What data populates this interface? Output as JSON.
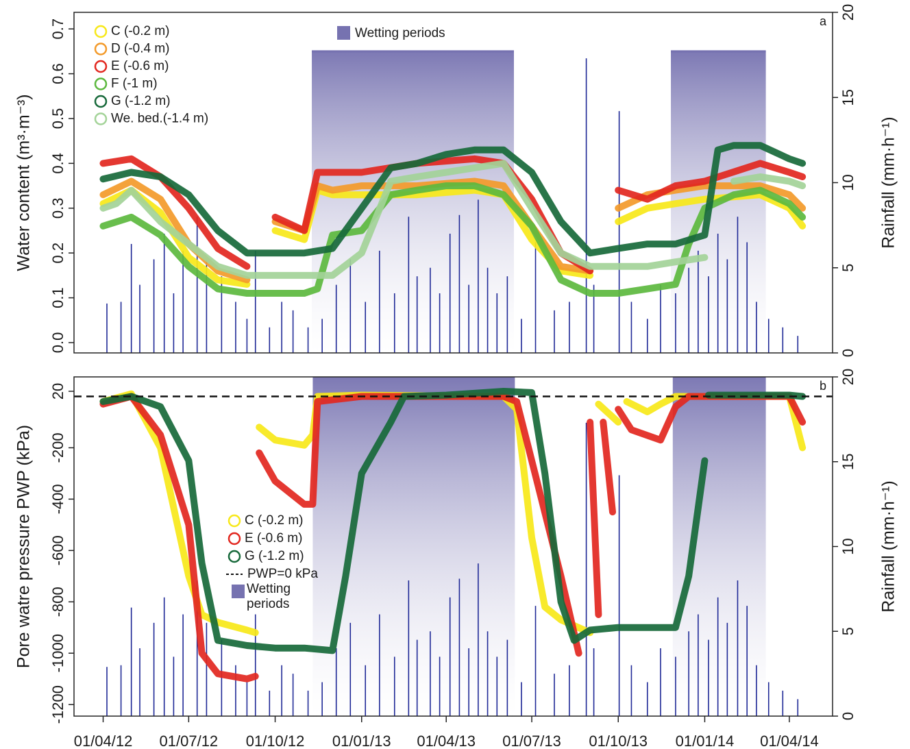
{
  "chart_data": [
    {
      "type": "line",
      "panel_label": "a",
      "y_label": "Water content (m³·m⁻³)",
      "y2_label": "Rainfall (mm·h⁻¹)",
      "xlim": [
        "01/03/12",
        "17/05/14"
      ],
      "ylim": [
        -0.023,
        0.737
      ],
      "yticks": [
        {
          "value": 0,
          "label": "0.0"
        },
        0.1,
        0.2,
        0.3,
        0.4,
        0.5,
        0.6,
        0.7
      ],
      "y2lim": [
        0,
        20
      ],
      "y2ticks": [
        0,
        5,
        10,
        15,
        20
      ],
      "wetting_label": "Wetting periods",
      "wetting_color": "#7672b0",
      "wetting_top": 0.65,
      "wetting_periods": [
        {
          "start": "09/11/12",
          "end": "12/06/13"
        },
        {
          "start": "26/11/13",
          "end": "07/03/14"
        }
      ],
      "series": [
        {
          "name": "C (-0.2 m)",
          "color": "#f7e819",
          "x": [
            "01/04/12",
            "01/05/12",
            "01/06/12",
            "01/07/12",
            "01/08/12",
            "01/09/12",
            "15/09/12",
            "01/10/12",
            "01/11/12",
            "15/11/12",
            "01/12/12",
            "01/01/13",
            "01/03/13",
            "01/05/13",
            "01/06/13",
            "01/07/13",
            "01/08/13",
            "01/09/13",
            "15/09/13",
            "01/10/13",
            "01/11/13",
            "01/12/13",
            "01/01/14",
            "01/03/14",
            "01/04/14",
            "15/04/14"
          ],
          "values": [
            0.31,
            0.34,
            0.29,
            0.19,
            0.14,
            0.13,
            null,
            0.25,
            0.23,
            0.34,
            0.33,
            0.33,
            0.33,
            0.34,
            0.33,
            0.23,
            0.16,
            0.15,
            null,
            0.27,
            0.3,
            0.31,
            0.32,
            0.33,
            0.3,
            0.26
          ]
        },
        {
          "name": "D (-0.4 m)",
          "color": "#f39a2a",
          "x": [
            "01/04/12",
            "01/05/12",
            "01/06/12",
            "01/07/12",
            "01/08/12",
            "01/09/12",
            "15/09/12",
            "01/10/12",
            "01/11/12",
            "15/11/12",
            "01/12/12",
            "01/01/13",
            "01/03/13",
            "01/05/13",
            "01/06/13",
            "01/07/13",
            "01/08/13",
            "01/09/13",
            "15/09/13",
            "01/10/13",
            "01/11/13",
            "01/12/13",
            "01/01/14",
            "01/03/14",
            "01/04/14",
            "15/04/14"
          ],
          "values": [
            0.33,
            0.36,
            0.32,
            0.22,
            0.16,
            0.14,
            null,
            0.27,
            0.25,
            0.35,
            0.34,
            0.35,
            0.35,
            0.36,
            0.35,
            0.26,
            0.17,
            0.16,
            null,
            0.3,
            0.33,
            0.34,
            0.35,
            0.35,
            0.33,
            0.3
          ]
        },
        {
          "name": "E (-0.6 m)",
          "color": "#e2271f",
          "x": [
            "01/04/12",
            "01/05/12",
            "01/06/12",
            "01/07/12",
            "01/08/12",
            "01/09/12",
            "15/09/12",
            "01/10/12",
            "01/11/12",
            "15/11/12",
            "01/12/12",
            "01/01/13",
            "01/03/13",
            "01/05/13",
            "01/06/13",
            "01/07/13",
            "01/08/13",
            "01/09/13",
            "15/09/13",
            "01/10/13",
            "01/11/13",
            "01/12/13",
            "01/01/14",
            "01/03/14",
            "01/04/14",
            "15/04/14"
          ],
          "values": [
            0.4,
            0.41,
            0.37,
            0.3,
            0.21,
            0.17,
            null,
            0.28,
            0.25,
            0.38,
            0.38,
            0.38,
            0.4,
            0.41,
            0.4,
            0.32,
            0.2,
            0.16,
            null,
            0.34,
            0.32,
            0.35,
            0.36,
            0.4,
            0.38,
            0.37
          ]
        },
        {
          "name": "F (-1 m)",
          "color": "#5cb83e",
          "x": [
            "01/04/12",
            "01/05/12",
            "01/06/12",
            "01/07/12",
            "01/08/12",
            "01/09/12",
            "01/10/12",
            "01/11/12",
            "15/11/12",
            "01/12/12",
            "01/01/13",
            "01/02/13",
            "01/03/13",
            "01/04/13",
            "01/05/13",
            "01/06/13",
            "01/07/13",
            "01/08/13",
            "01/09/13",
            "01/10/13",
            "01/11/13",
            "01/12/13",
            "15/12/13",
            "01/01/14",
            "01/02/14",
            "01/03/14",
            "01/04/14",
            "15/04/14"
          ],
          "values": [
            0.26,
            0.28,
            0.24,
            0.17,
            0.12,
            0.11,
            0.11,
            0.11,
            0.12,
            0.24,
            0.25,
            0.33,
            0.34,
            0.35,
            0.35,
            0.33,
            0.26,
            0.14,
            0.11,
            0.11,
            0.12,
            0.13,
            0.22,
            0.3,
            0.33,
            0.34,
            0.31,
            0.28
          ]
        },
        {
          "name": "G (-1.2 m)",
          "color": "#17693a",
          "x": [
            "01/04/12",
            "01/05/12",
            "01/06/12",
            "01/07/12",
            "01/08/12",
            "01/09/12",
            "01/10/12",
            "01/11/12",
            "01/12/12",
            "01/01/13",
            "01/02/13",
            "01/03/13",
            "01/04/13",
            "01/05/13",
            "01/06/13",
            "01/07/13",
            "01/08/13",
            "01/09/13",
            "01/10/13",
            "01/11/13",
            "01/12/13",
            "01/01/14",
            "15/01/14",
            "01/02/14",
            "01/03/14",
            "01/04/14",
            "15/04/14"
          ],
          "values": [
            0.365,
            0.38,
            0.37,
            0.33,
            0.25,
            0.2,
            0.2,
            0.2,
            0.21,
            0.3,
            0.39,
            0.4,
            0.42,
            0.43,
            0.43,
            0.38,
            0.27,
            0.2,
            0.21,
            0.22,
            0.22,
            0.24,
            0.43,
            0.44,
            0.44,
            0.41,
            0.4
          ]
        },
        {
          "name": "We. bed.(-1.4 m)",
          "color": "#a3d398",
          "x": [
            "01/04/12",
            "15/04/12",
            "01/05/12",
            "01/06/12",
            "01/07/12",
            "01/08/12",
            "01/09/12",
            "01/10/12",
            "01/12/12",
            "01/01/13",
            "01/02/13",
            "01/03/13",
            "01/04/13",
            "01/05/13",
            "01/06/13",
            "01/07/13",
            "01/08/13",
            "01/09/13",
            "01/10/13",
            "01/11/13",
            "01/12/13",
            "01/01/14",
            "15/01/14",
            "01/02/14",
            "01/03/14",
            "01/04/14",
            "15/04/14"
          ],
          "values": [
            0.3,
            0.31,
            0.34,
            0.27,
            0.22,
            0.17,
            0.15,
            0.15,
            0.15,
            0.2,
            0.36,
            0.37,
            0.38,
            0.39,
            0.4,
            0.3,
            0.2,
            0.17,
            0.17,
            0.17,
            0.18,
            0.19,
            null,
            0.36,
            0.37,
            0.36,
            0.35
          ]
        }
      ],
      "rainfall": {
        "axis": "y2",
        "color": "#1e2896",
        "x": [
          "05/04/12",
          "20/04/12",
          "01/05/12",
          "10/05/12",
          "25/05/12",
          "05/06/12",
          "15/06/12",
          "25/06/12",
          "10/07/12",
          "20/07/12",
          "05/08/12",
          "20/08/12",
          "01/09/12",
          "10/09/12",
          "25/09/12",
          "08/10/12",
          "20/10/12",
          "05/11/12",
          "20/11/12",
          "05/12/12",
          "20/12/12",
          "05/01/13",
          "20/01/13",
          "05/02/13",
          "20/02/13",
          "01/03/13",
          "15/03/13",
          "25/03/13",
          "05/04/13",
          "15/04/13",
          "25/04/13",
          "05/05/13",
          "15/05/13",
          "25/05/13",
          "05/06/13",
          "20/06/13",
          "05/07/13",
          "25/07/13",
          "10/08/13",
          "28/08/13",
          "05/09/13",
          "02/10/13",
          "15/10/13",
          "01/11/13",
          "15/11/13",
          "01/12/13",
          "15/12/13",
          "25/12/13",
          "05/01/14",
          "15/01/14",
          "25/01/14",
          "05/02/14",
          "15/02/14",
          "25/02/14",
          "10/03/14",
          "25/03/14",
          "10/04/14"
        ],
        "values": [
          2.9,
          3.0,
          6.4,
          4.0,
          5.5,
          7.0,
          3.5,
          6.0,
          8.0,
          5.5,
          4.5,
          3.0,
          2.0,
          6.0,
          1.5,
          3.0,
          2.5,
          1.5,
          2.0,
          4.0,
          5.5,
          3.0,
          6.0,
          3.5,
          8.0,
          4.5,
          5.0,
          3.5,
          7.0,
          8.1,
          4.0,
          9.0,
          5.0,
          3.5,
          4.5,
          2.0,
          6.5,
          2.5,
          3.0,
          17.3,
          4.0,
          14.2,
          3.0,
          2.0,
          4.0,
          3.5,
          5.0,
          6.0,
          4.5,
          7.0,
          5.5,
          8.0,
          6.5,
          3.0,
          2.0,
          1.5,
          1.0
        ]
      }
    },
    {
      "type": "line",
      "panel_label": "b",
      "y_label": "Pore watre pressure PWP (kPa)",
      "y2_label": "Rainfall (mm·h⁻¹)",
      "xlim": [
        "01/03/12",
        "17/05/14"
      ],
      "xticks": [
        "01/04/12",
        "01/07/12",
        "01/10/12",
        "01/01/13",
        "01/04/13",
        "01/07/13",
        "01/10/13",
        "01/01/14",
        "01/04/14"
      ],
      "ylim": [
        -1245,
        76
      ],
      "yticks": [
        20,
        -200,
        -400,
        -600,
        -800,
        -1000,
        -1200
      ],
      "y2lim": [
        0,
        20
      ],
      "y2ticks": [
        0,
        5,
        10,
        15,
        20
      ],
      "reference_line": {
        "value": 0,
        "label": "PWP=0 kPa"
      },
      "wetting_label": "Wetting periods",
      "wetting_color": "#7672b0",
      "wetting_periods": [
        {
          "start": "10/11/12",
          "end": "13/06/13"
        },
        {
          "start": "28/11/13",
          "end": "07/03/14"
        }
      ],
      "series": [
        {
          "name": "C (-0.2 m)",
          "color": "#f7e819",
          "x": [
            "01/04/12",
            "01/05/12",
            "01/06/12",
            "01/07/12",
            "15/07/12",
            "01/08/12",
            "01/09/12",
            "10/09/12",
            "12/09/12",
            "14/09/12",
            "01/10/12",
            "01/11/12",
            "10/11/12",
            "15/11/12",
            "01/01/13",
            "01/06/13",
            "15/06/13",
            "01/07/13",
            "15/07/13",
            "01/08/13",
            "01/09/13",
            "05/09/13",
            "10/09/13",
            "01/10/13",
            "05/10/13",
            "10/10/13",
            "01/11/13",
            "15/11/13",
            "01/12/13",
            "01/04/14",
            "15/04/14"
          ],
          "values": [
            -20,
            10,
            -200,
            -700,
            -850,
            -880,
            -910,
            -920,
            null,
            -120,
            -170,
            -190,
            -150,
            0,
            5,
            0,
            -50,
            -550,
            -820,
            -870,
            -920,
            null,
            -30,
            -100,
            null,
            -20,
            -60,
            -30,
            0,
            0,
            -200
          ]
        },
        {
          "name": "E (-0.6 m)",
          "color": "#e2271f",
          "x": [
            "01/04/12",
            "01/05/12",
            "01/06/12",
            "01/07/12",
            "15/07/12",
            "01/08/12",
            "01/09/12",
            "10/09/12",
            "12/09/12",
            "14/09/12",
            "01/10/12",
            "01/11/12",
            "10/11/12",
            "15/11/12",
            "01/01/13",
            "01/06/13",
            "15/06/13",
            "01/07/13",
            "01/08/13",
            "20/08/13",
            "22/08/13",
            "01/09/13",
            "10/09/13",
            "12/09/13",
            "15/09/13",
            "25/09/13",
            "27/09/13",
            "01/10/13",
            "15/10/13",
            "15/11/13",
            "01/12/13",
            "15/12/13",
            "01/04/14",
            "15/04/14"
          ],
          "values": [
            -30,
            0,
            -150,
            -500,
            -1000,
            -1080,
            -1100,
            -1090,
            null,
            -220,
            -330,
            -420,
            -420,
            -20,
            0,
            0,
            -20,
            -250,
            -700,
            -1000,
            null,
            -100,
            -850,
            null,
            -100,
            -450,
            null,
            -50,
            -130,
            -170,
            -40,
            0,
            0,
            -100
          ]
        },
        {
          "name": "G (-1.2 m)",
          "color": "#17693a",
          "x": [
            "01/04/12",
            "01/05/12",
            "01/06/12",
            "01/07/12",
            "15/07/12",
            "01/08/12",
            "01/09/12",
            "01/10/12",
            "01/11/12",
            "01/12/12",
            "15/12/12",
            "01/01/13",
            "01/02/13",
            "15/02/13",
            "01/04/13",
            "01/06/13",
            "01/07/13",
            "15/07/13",
            "01/08/13",
            "15/08/13",
            "01/09/13",
            "01/10/13",
            "01/11/13",
            "01/12/13",
            "15/12/13",
            "01/01/14",
            "03/01/14",
            "05/01/14",
            "01/02/14",
            "01/04/14",
            "15/04/14"
          ],
          "values": [
            -20,
            0,
            -40,
            -250,
            -650,
            -950,
            -970,
            -980,
            -980,
            -990,
            -700,
            -300,
            -100,
            0,
            5,
            20,
            15,
            -300,
            -800,
            -950,
            -910,
            -900,
            -900,
            -900,
            -700,
            -250,
            null,
            5,
            5,
            5,
            0
          ]
        }
      ],
      "rainfall": {
        "axis": "y2",
        "color": "#1e2896",
        "x": [
          "05/04/12",
          "20/04/12",
          "01/05/12",
          "10/05/12",
          "25/05/12",
          "05/06/12",
          "15/06/12",
          "25/06/12",
          "10/07/12",
          "20/07/12",
          "05/08/12",
          "20/08/12",
          "01/09/12",
          "10/09/12",
          "25/09/12",
          "08/10/12",
          "20/10/12",
          "05/11/12",
          "20/11/12",
          "05/12/12",
          "20/12/12",
          "05/01/13",
          "20/01/13",
          "05/02/13",
          "20/02/13",
          "01/03/13",
          "15/03/13",
          "25/03/13",
          "05/04/13",
          "15/04/13",
          "25/04/13",
          "05/05/13",
          "15/05/13",
          "25/05/13",
          "05/06/13",
          "20/06/13",
          "05/07/13",
          "25/07/13",
          "10/08/13",
          "28/08/13",
          "05/09/13",
          "02/10/13",
          "15/10/13",
          "01/11/13",
          "15/11/13",
          "01/12/13",
          "15/12/13",
          "25/12/13",
          "05/01/14",
          "15/01/14",
          "25/01/14",
          "05/02/14",
          "15/02/14",
          "25/02/14",
          "10/03/14",
          "25/03/14",
          "10/04/14"
        ],
        "values": [
          2.9,
          3.0,
          6.4,
          4.0,
          5.5,
          7.0,
          3.5,
          6.0,
          8.0,
          5.5,
          4.5,
          3.0,
          2.0,
          6.0,
          1.5,
          3.0,
          2.5,
          1.5,
          2.0,
          4.0,
          5.5,
          3.0,
          6.0,
          3.5,
          8.0,
          4.5,
          5.0,
          3.5,
          7.0,
          8.1,
          4.0,
          9.0,
          5.0,
          3.5,
          4.5,
          2.0,
          6.5,
          2.5,
          3.0,
          17.3,
          4.0,
          14.2,
          3.0,
          2.0,
          4.0,
          3.5,
          5.0,
          6.0,
          4.5,
          7.0,
          5.5,
          8.0,
          6.5,
          3.0,
          2.0,
          1.5,
          1.0
        ]
      }
    }
  ]
}
